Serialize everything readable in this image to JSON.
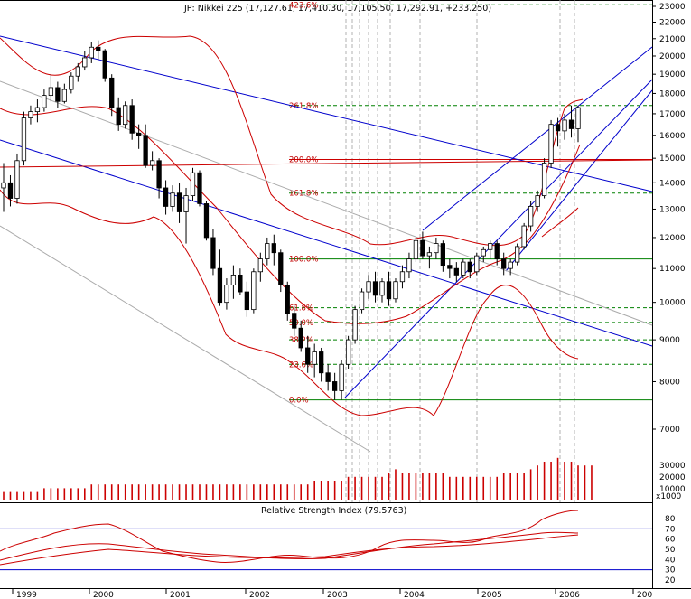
{
  "chart_data": [
    {
      "type": "candlestick",
      "title": "JP: Nikkei 225 (17,127.61, 17,410.30, 17,105.50, 17,292.91, +233.250)",
      "x_labels": [
        "1999",
        "2000",
        "2001",
        "2002",
        "2003",
        "2004",
        "2005",
        "2006",
        "200"
      ],
      "y_ticks": [
        7000,
        8000,
        9000,
        10000,
        11000,
        12000,
        13000,
        14000,
        15000,
        16000,
        17000,
        18000,
        19000,
        20000,
        21000,
        22000,
        23000
      ],
      "y_scale": "log",
      "fib_levels": [
        {
          "label": "0.0%",
          "value": 7600
        },
        {
          "label": "23.6%",
          "value": 8400
        },
        {
          "label": "38.2%",
          "value": 9000
        },
        {
          "label": "50.0%",
          "value": 9450
        },
        {
          "label": "61.8%",
          "value": 9850
        },
        {
          "label": "100.0%",
          "value": 11300
        },
        {
          "label": "161.8%",
          "value": 13600
        },
        {
          "label": "200.0%",
          "value": 14950
        },
        {
          "label": "261.8%",
          "value": 17400
        },
        {
          "label": "423.6%",
          "value": 23100
        }
      ],
      "candles": [
        [
          13800,
          14800,
          12900,
          14000
        ],
        [
          14000,
          14300,
          13100,
          13400
        ],
        [
          13400,
          15200,
          13200,
          14900
        ],
        [
          14900,
          17100,
          14700,
          16800
        ],
        [
          16800,
          17400,
          16500,
          17100
        ],
        [
          17100,
          17700,
          16600,
          17300
        ],
        [
          17300,
          18200,
          17100,
          17900
        ],
        [
          17900,
          19000,
          17600,
          18300
        ],
        [
          18300,
          18600,
          17300,
          17600
        ],
        [
          17600,
          18500,
          17500,
          18200
        ],
        [
          18200,
          19100,
          18000,
          18900
        ],
        [
          18900,
          19600,
          18600,
          19400
        ],
        [
          19400,
          20300,
          19200,
          19900
        ],
        [
          19900,
          20800,
          19600,
          20500
        ],
        [
          20500,
          20900,
          19800,
          20300
        ],
        [
          20300,
          20400,
          18600,
          18800
        ],
        [
          18800,
          19000,
          16900,
          17300
        ],
        [
          17300,
          17800,
          16200,
          16500
        ],
        [
          16500,
          17600,
          16300,
          17400
        ],
        [
          17400,
          17700,
          15800,
          16100
        ],
        [
          16100,
          16500,
          15400,
          16000
        ],
        [
          16000,
          16500,
          14600,
          14700
        ],
        [
          14700,
          15300,
          14500,
          14900
        ],
        [
          14900,
          15000,
          13400,
          13800
        ],
        [
          13800,
          14100,
          12800,
          13100
        ],
        [
          13100,
          13900,
          12900,
          13600
        ],
        [
          13600,
          14000,
          12500,
          12900
        ],
        [
          12900,
          13800,
          11800,
          13500
        ],
        [
          13500,
          14600,
          13300,
          14400
        ],
        [
          14400,
          14500,
          13100,
          13200
        ],
        [
          13200,
          13300,
          11900,
          12000
        ],
        [
          12000,
          12300,
          10800,
          11000
        ],
        [
          11000,
          11600,
          9900,
          10000
        ],
        [
          10000,
          10700,
          9800,
          10500
        ],
        [
          10500,
          11100,
          10100,
          10800
        ],
        [
          10800,
          11000,
          10200,
          10300
        ],
        [
          10300,
          10600,
          9600,
          9800
        ],
        [
          9800,
          11000,
          9700,
          10900
        ],
        [
          10900,
          11500,
          10600,
          11300
        ],
        [
          11300,
          12000,
          11100,
          11800
        ],
        [
          11800,
          12100,
          11100,
          11500
        ],
        [
          11500,
          11600,
          10300,
          10500
        ],
        [
          10500,
          10600,
          9500,
          9700
        ],
        [
          9700,
          9900,
          9100,
          9300
        ],
        [
          9300,
          9500,
          8700,
          8800
        ],
        [
          8800,
          9100,
          8200,
          8400
        ],
        [
          8400,
          8900,
          8100,
          8700
        ],
        [
          8700,
          8800,
          8000,
          8200
        ],
        [
          8200,
          8400,
          7800,
          8000
        ],
        [
          8000,
          8200,
          7600,
          7800
        ],
        [
          7800,
          8500,
          7600,
          8400
        ],
        [
          8400,
          9100,
          8300,
          9000
        ],
        [
          9000,
          9900,
          8900,
          9800
        ],
        [
          9800,
          10400,
          9700,
          10300
        ],
        [
          10300,
          10800,
          10100,
          10600
        ],
        [
          10600,
          10900,
          10000,
          10200
        ],
        [
          10200,
          10700,
          10000,
          10600
        ],
        [
          10600,
          10900,
          9900,
          10100
        ],
        [
          10100,
          10700,
          10000,
          10600
        ],
        [
          10600,
          11100,
          10400,
          10900
        ],
        [
          10900,
          11500,
          10700,
          11300
        ],
        [
          11300,
          12000,
          11200,
          11900
        ],
        [
          11900,
          12200,
          11300,
          11400
        ],
        [
          11400,
          11700,
          11000,
          11500
        ],
        [
          11500,
          12000,
          11300,
          11800
        ],
        [
          11800,
          11900,
          10900,
          11100
        ],
        [
          11100,
          11300,
          10700,
          11000
        ],
        [
          11000,
          11200,
          10600,
          10800
        ],
        [
          10800,
          11300,
          10700,
          11200
        ],
        [
          11200,
          11300,
          10700,
          10900
        ],
        [
          10900,
          11500,
          10800,
          11400
        ],
        [
          11400,
          11700,
          11200,
          11600
        ],
        [
          11600,
          11900,
          11300,
          11800
        ],
        [
          11800,
          11900,
          11100,
          11300
        ],
        [
          11300,
          11500,
          10800,
          11000
        ],
        [
          11000,
          11300,
          10800,
          11200
        ],
        [
          11200,
          11800,
          11100,
          11700
        ],
        [
          11700,
          12500,
          11600,
          12400
        ],
        [
          12400,
          13300,
          12200,
          13100
        ],
        [
          13100,
          13700,
          12900,
          13500
        ],
        [
          13500,
          15000,
          13400,
          14800
        ],
        [
          14800,
          16700,
          14600,
          16500
        ],
        [
          16500,
          16800,
          15500,
          16200
        ],
        [
          16200,
          17000,
          15800,
          16700
        ],
        [
          16700,
          17400,
          15900,
          16300
        ],
        [
          16300,
          17400,
          15700,
          17300
        ]
      ],
      "volume": [
        2,
        2,
        2,
        2,
        2,
        2,
        3,
        3,
        3,
        3,
        3,
        3,
        3,
        4,
        4,
        4,
        4,
        4,
        4,
        4,
        4,
        4,
        4,
        4,
        4,
        4,
        4,
        4,
        4,
        4,
        4,
        4,
        4,
        4,
        4,
        4,
        4,
        4,
        4,
        4,
        4,
        4,
        4,
        4,
        4,
        4,
        5,
        5,
        5,
        5,
        5,
        6,
        6,
        6,
        6,
        6,
        6,
        7,
        8,
        7,
        7,
        7,
        7,
        7,
        7,
        7,
        6,
        6,
        6,
        6,
        6,
        6,
        6,
        6,
        7,
        7,
        7,
        7,
        8,
        9,
        10,
        10,
        11,
        10,
        10,
        9,
        9,
        9
      ],
      "volume_ticks": [
        "10000",
        "20000",
        "30000"
      ],
      "volume_unit": "x1000"
    },
    {
      "type": "line",
      "title": "Relative Strength Index (79.5763)",
      "y_ticks": [
        20,
        30,
        40,
        50,
        60,
        70,
        80
      ],
      "reference_lines": [
        70,
        30
      ]
    }
  ]
}
